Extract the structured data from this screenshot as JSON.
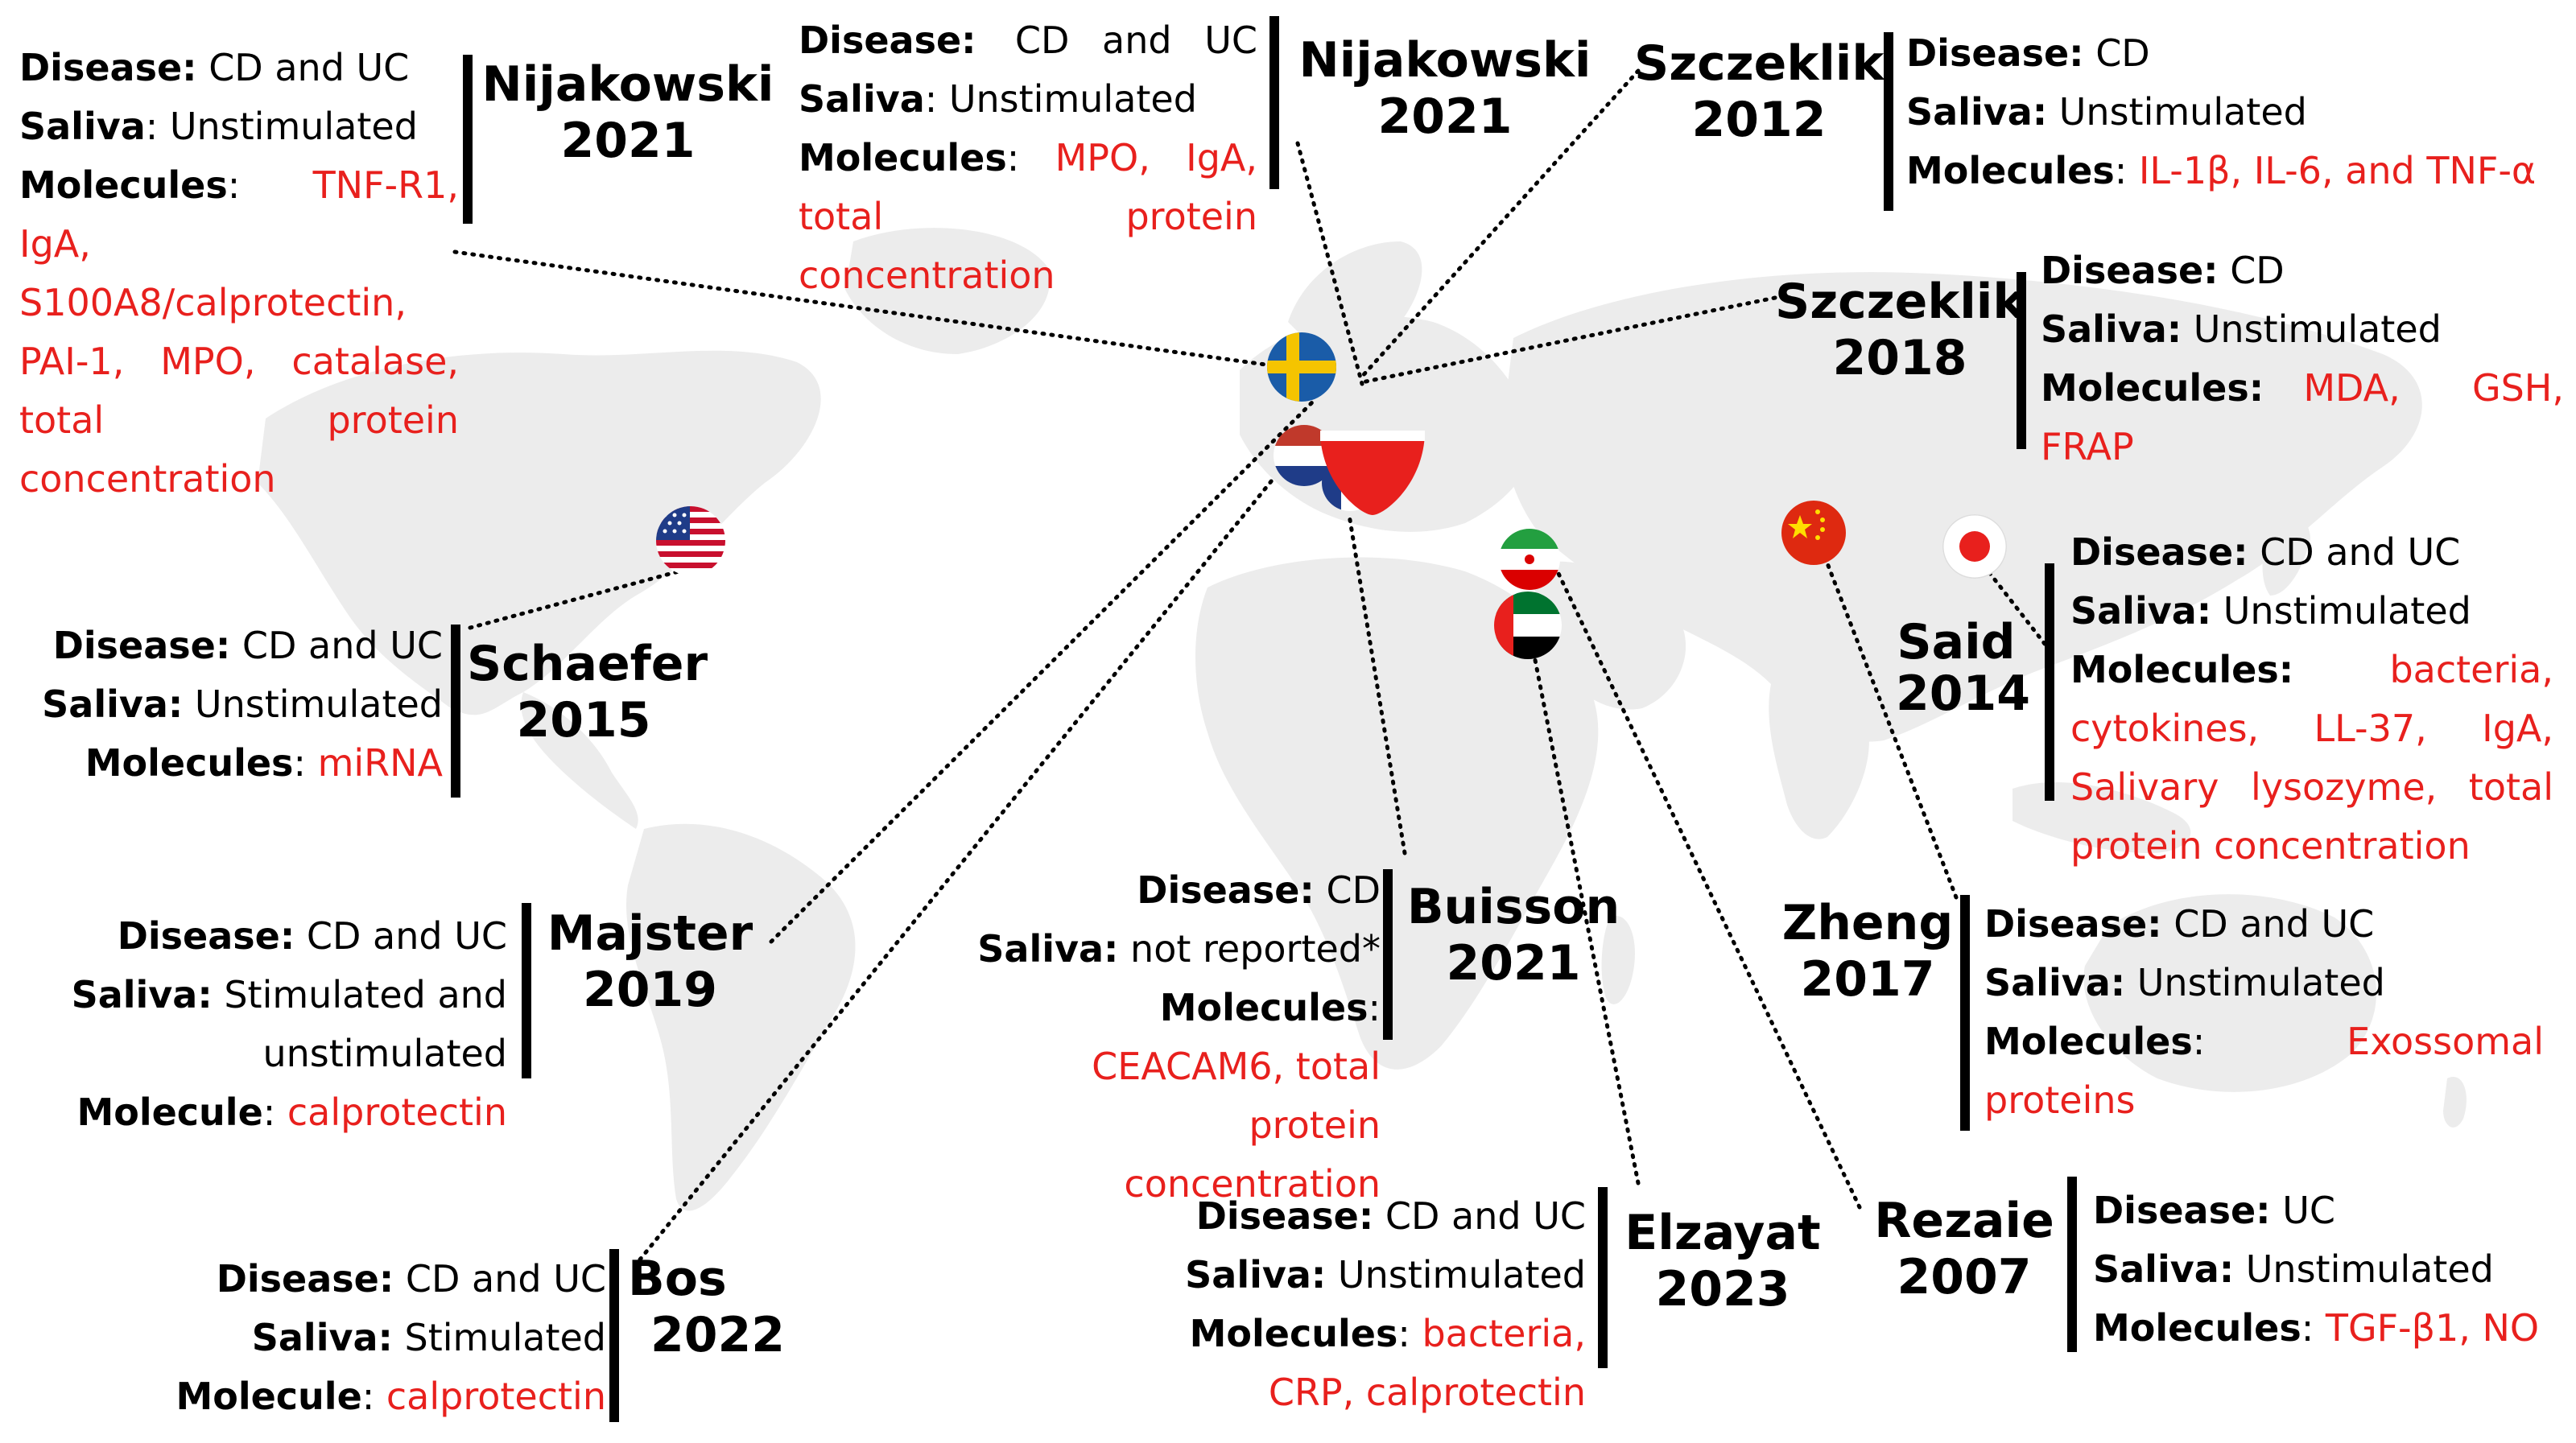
{
  "studies": [
    {
      "id": "nijakowski-a",
      "author": "Nijakowski",
      "year": "2021",
      "disease": "CD and UC",
      "saliva": "Unstimulated",
      "molecules_label": "Molecules",
      "molecules": "TNF-R1, IgA, S100A8/calprotectin, PAI-1, MPO, catalase, total protein concentration"
    },
    {
      "id": "nijakowski-b",
      "author": "Nijakowski",
      "year": "2021",
      "disease": "CD and UC",
      "saliva": "Unstimulated",
      "molecules_label": "Molecules",
      "molecules": "MPO, IgA, total protein concentration"
    },
    {
      "id": "szczeklik-2012",
      "author": "Szczeklik",
      "year": "2012",
      "disease": "CD",
      "saliva": "Unstimulated",
      "molecules_label": "Molecules",
      "molecules": "IL-1β, IL-6, and TNF-α"
    },
    {
      "id": "szczeklik-2018",
      "author": "Szczeklik",
      "year": "2018",
      "disease": "CD",
      "saliva": "Unstimulated",
      "molecules_label": "Molecules",
      "molecules": "MDA, GSH, FRAP"
    },
    {
      "id": "schaefer",
      "author": "Schaefer",
      "year": "2015",
      "disease": "CD and UC",
      "saliva": "Unstimulated",
      "molecules_label": "Molecules",
      "molecules": "miRNA"
    },
    {
      "id": "said",
      "author": "Said",
      "year": "2014",
      "disease": "CD and UC",
      "saliva": "Unstimulated",
      "molecules_label": "Molecules",
      "molecules": "bacteria, cytokines, LL-37, IgA, Salivary lysozyme, total protein concentration"
    },
    {
      "id": "majster",
      "author": "Majster",
      "year": "2019",
      "disease": "CD and UC",
      "saliva": "Stimulated and unstimulated",
      "molecules_label": "Molecule",
      "molecules": "calprotectin"
    },
    {
      "id": "buisson",
      "author": "Buisson",
      "year": "2021",
      "disease": "CD",
      "saliva": "not reported*",
      "molecules_label": "Molecules",
      "molecules": "CEACAM6, total protein concentration"
    },
    {
      "id": "zheng",
      "author": "Zheng",
      "year": "2017",
      "disease": "CD and UC",
      "saliva": "Unstimulated",
      "molecules_label": "Molecules",
      "molecules": "Exossomal proteins"
    },
    {
      "id": "bos",
      "author": "Bos",
      "year": "2022",
      "disease": "CD and UC",
      "saliva": "Stimulated",
      "molecules_label": "Molecule",
      "molecules": "calprotectin"
    },
    {
      "id": "elzayat",
      "author": "Elzayat",
      "year": "2023",
      "disease": "CD and UC",
      "saliva": "Unstimulated",
      "molecules_label": "Molecules",
      "molecules": "bacteria, CRP, calprotectin"
    },
    {
      "id": "rezaie",
      "author": "Rezaie",
      "year": "2007",
      "disease": "UC",
      "saliva": "Unstimulated",
      "molecules_label": "Molecules",
      "molecules": "TGF-β1, NO"
    }
  ],
  "labels": {
    "disease": "Disease",
    "saliva": "Saliva",
    "sep": ":"
  },
  "flag_icons": [
    "us-flag-icon",
    "sweden-flag-icon",
    "netherlands-flag-icon",
    "france-flag-icon",
    "poland-flag-icon",
    "iran-flag-icon",
    "uae-flag-icon",
    "china-flag-icon",
    "japan-flag-icon"
  ],
  "colors": {
    "molecules": "#e8201d",
    "map": "#ececec",
    "bar": "#000000",
    "leader": "#000000"
  }
}
